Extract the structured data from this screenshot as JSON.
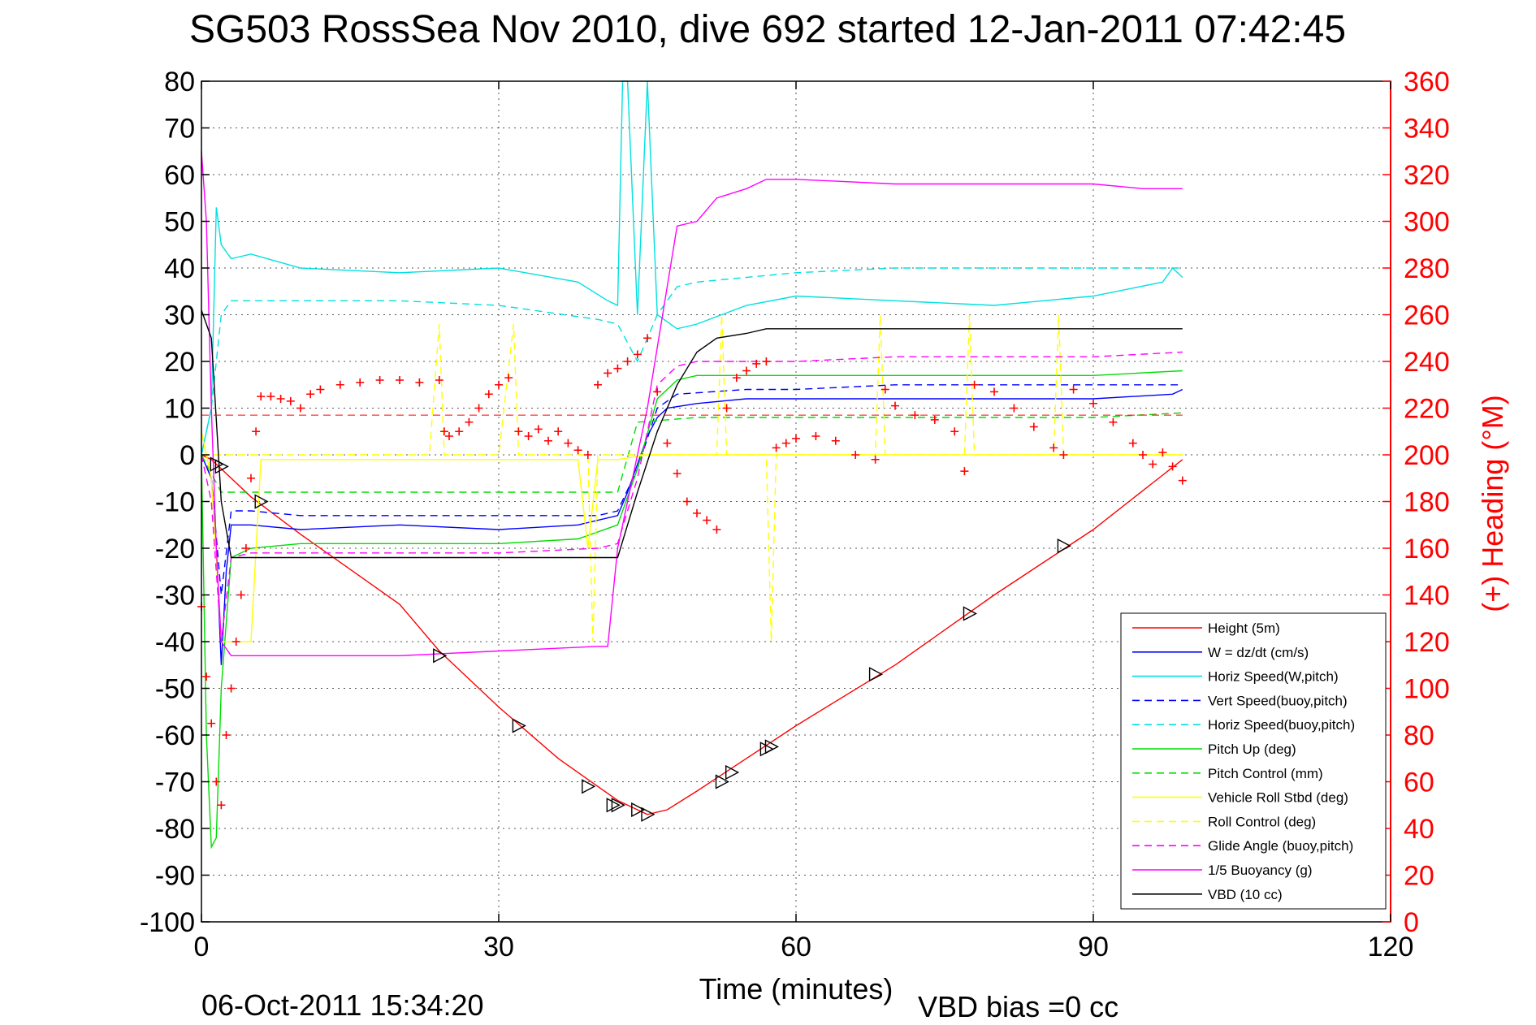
{
  "chart_data": {
    "type": "line",
    "title": "SG503 RossSea Nov 2010, dive 692 started 12-Jan-2011 07:42:45",
    "xlabel": "Time (minutes)",
    "ylabel": "",
    "y2label": "(+) Heading (°M)",
    "xlim": [
      0,
      120
    ],
    "ylim": [
      -100,
      80
    ],
    "y2lim": [
      0,
      360
    ],
    "x_ticks": [
      "0",
      "30",
      "60",
      "90",
      "120"
    ],
    "y_ticks": [
      "80",
      "70",
      "60",
      "50",
      "40",
      "30",
      "20",
      "10",
      "0",
      "-10",
      "-20",
      "-30",
      "-40",
      "-50",
      "-60",
      "-70",
      "-80",
      "-90",
      "-100"
    ],
    "y2_ticks": [
      "360",
      "340",
      "320",
      "300",
      "280",
      "260",
      "240",
      "220",
      "200",
      "180",
      "160",
      "140",
      "120",
      "100",
      "80",
      "60",
      "40",
      "20",
      "0"
    ],
    "grid": true,
    "legend_position": "bottom-right",
    "footer_left": "06-Oct-2011 15:34:20",
    "footer_right": "VBD bias =0 cc",
    "series": [
      {
        "name": "Height (5m)",
        "color": "#ff0000",
        "dash": "solid",
        "x": [
          0,
          1,
          2,
          5,
          10,
          20,
          24,
          30,
          36,
          40,
          42,
          44,
          45,
          47,
          50,
          55,
          60,
          70,
          80,
          90,
          96,
          99
        ],
        "y": [
          0,
          -1,
          -3,
          -9,
          -17,
          -32,
          -42,
          -54,
          -65,
          -71,
          -74,
          -76,
          -77,
          -76,
          -72,
          -65,
          -58,
          -45,
          -30,
          -16,
          -6,
          -1
        ]
      },
      {
        "name": "W = dz/dt (cm/s)",
        "color": "#0000ff",
        "dash": "solid",
        "x": [
          0,
          1,
          1.5,
          2,
          2.5,
          3,
          5,
          10,
          20,
          30,
          38,
          42,
          43,
          44,
          45,
          46,
          47,
          50,
          55,
          60,
          70,
          80,
          90,
          98,
          99
        ],
        "y": [
          0,
          -5,
          -20,
          -45,
          -25,
          -15,
          -15,
          -16,
          -15,
          -16,
          -15,
          -13,
          -8,
          -2,
          4,
          8,
          10,
          11,
          12,
          12,
          12,
          12,
          12,
          13,
          14
        ]
      },
      {
        "name": "Horiz Speed(W,pitch)",
        "color": "#00e0e0",
        "dash": "solid",
        "x": [
          0,
          1,
          1.5,
          2,
          3,
          5,
          10,
          20,
          30,
          38,
          41,
          42,
          42.5,
          43,
          44,
          45,
          46,
          48,
          50,
          55,
          60,
          70,
          80,
          90,
          97,
          98,
          99
        ],
        "y": [
          0,
          10,
          53,
          45,
          42,
          43,
          40,
          39,
          40,
          37,
          33,
          32,
          80,
          80,
          30,
          80,
          30,
          27,
          28,
          32,
          34,
          33,
          32,
          34,
          37,
          40,
          38
        ]
      },
      {
        "name": "Vert Speed(buoy,pitch)",
        "color": "#0000ff",
        "dash": "dashed",
        "x": [
          0,
          1,
          2,
          3,
          5,
          10,
          20,
          30,
          40,
          42,
          44,
          46,
          48,
          55,
          60,
          70,
          80,
          90,
          99
        ],
        "y": [
          0,
          -5,
          -30,
          -12,
          -12,
          -13,
          -13,
          -13,
          -13,
          -12,
          -3,
          10,
          13,
          14,
          14,
          15,
          15,
          15,
          15
        ]
      },
      {
        "name": "Horiz Speed(buoy,pitch)",
        "color": "#00e0e0",
        "dash": "dashed",
        "x": [
          0,
          1,
          2,
          3,
          5,
          10,
          20,
          30,
          40,
          42,
          44,
          46,
          48,
          50,
          55,
          60,
          70,
          80,
          90,
          99
        ],
        "y": [
          0,
          10,
          30,
          33,
          33,
          33,
          33,
          32,
          29,
          28,
          20,
          30,
          36,
          37,
          38,
          39,
          40,
          40,
          40,
          40
        ]
      },
      {
        "name": "Pitch Up (deg)",
        "color": "#00dd00",
        "dash": "solid",
        "x": [
          0,
          0.5,
          1,
          1.5,
          2,
          3,
          5,
          10,
          20,
          30,
          38,
          42,
          44,
          46,
          48,
          50,
          55,
          60,
          70,
          80,
          90,
          99
        ],
        "y": [
          0,
          -60,
          -84,
          -82,
          -50,
          -22,
          -20,
          -19,
          -19,
          -19,
          -18,
          -15,
          -3,
          12,
          16,
          17,
          17,
          17,
          17,
          17,
          17,
          18
        ]
      },
      {
        "name": "Pitch Control (mm)",
        "color": "#00dd00",
        "dash": "dashed",
        "x": [
          0,
          2,
          5,
          10,
          20,
          30,
          42,
          44,
          50,
          60,
          70,
          80,
          90,
          99
        ],
        "y": [
          0,
          -8,
          -8,
          -8,
          -8,
          -8,
          -8,
          7,
          8,
          8,
          8,
          8,
          8,
          9
        ]
      },
      {
        "name": "Vehicle Roll Stbd (deg)",
        "color": "#ffff00",
        "dash": "solid",
        "x": [
          0,
          1,
          2,
          3,
          5,
          6,
          10,
          20,
          30,
          38,
          39,
          40,
          42,
          45,
          50,
          60,
          70,
          80,
          90,
          99
        ],
        "y": [
          5,
          -5,
          -40,
          -40,
          -40,
          -1,
          -1,
          -1,
          -1,
          -1,
          -20,
          -1,
          -1,
          0,
          0,
          0,
          0,
          0,
          0,
          0
        ]
      },
      {
        "name": "Roll Control (deg)",
        "color": "#ffff00",
        "dash": "dashed",
        "x": [
          0,
          5,
          23,
          24,
          24.5,
          30,
          31.5,
          32,
          39,
          39.5,
          40,
          52,
          52.5,
          53,
          57,
          57.5,
          58,
          68,
          68.5,
          69,
          77,
          77.5,
          78,
          86,
          86.5,
          87,
          99
        ],
        "y": [
          0,
          0,
          0,
          28,
          0,
          0,
          28,
          0,
          0,
          -40,
          0,
          0,
          30,
          0,
          0,
          -40,
          0,
          0,
          30,
          0,
          0,
          30,
          0,
          0,
          30,
          0,
          0
        ]
      },
      {
        "name": "Glide Angle (buoy,pitch)",
        "color": "#ff00ff",
        "dash": "dashed",
        "x": [
          0,
          1,
          2,
          3,
          5,
          10,
          20,
          30,
          40,
          42,
          44,
          46,
          48,
          50,
          55,
          60,
          70,
          80,
          90,
          99
        ],
        "y": [
          0,
          -10,
          -40,
          -22,
          -21,
          -21,
          -21,
          -21,
          -20,
          -19,
          -5,
          15,
          19,
          20,
          20,
          20,
          21,
          21,
          21,
          22
        ]
      },
      {
        "name": "1/5 Buoyancy (g)",
        "color": "#ff00ff",
        "dash": "solid",
        "x": [
          0,
          0.5,
          1,
          1.5,
          2,
          3,
          10,
          20,
          30,
          40,
          41,
          42,
          45,
          48,
          50,
          52,
          55,
          57,
          60,
          70,
          80,
          90,
          95,
          99
        ],
        "y": [
          65,
          50,
          10,
          -20,
          -40,
          -43,
          -43,
          -43,
          -42,
          -41,
          -41,
          -20,
          10,
          49,
          50,
          55,
          57,
          59,
          59,
          58,
          58,
          58,
          57,
          57
        ]
      },
      {
        "name": "VBD (10 cc)",
        "color": "#000000",
        "dash": "solid",
        "x": [
          0,
          1,
          2,
          3,
          10,
          20,
          30,
          40,
          42,
          44,
          46,
          48,
          50,
          52,
          55,
          57,
          60,
          70,
          80,
          90,
          99
        ],
        "y": [
          31,
          25,
          -10,
          -22,
          -22,
          -22,
          -22,
          -22,
          -22,
          -8,
          5,
          15,
          22,
          25,
          26,
          27,
          27,
          27,
          27,
          27,
          27
        ]
      }
    ],
    "heading": {
      "name": "(+) Heading",
      "color": "#ff0000",
      "marker": "+",
      "x": [
        0,
        0.5,
        1,
        1.5,
        2,
        2.5,
        3,
        3.5,
        4,
        4.5,
        5,
        5.5,
        6,
        7,
        8,
        9,
        10,
        11,
        12,
        14,
        16,
        18,
        20,
        22,
        24,
        24.5,
        25,
        26,
        27,
        28,
        29,
        30,
        31,
        32,
        33,
        34,
        35,
        36,
        37,
        38,
        39,
        40,
        41,
        42,
        43,
        44,
        45,
        46,
        47,
        48,
        49,
        50,
        51,
        52,
        53,
        54,
        55,
        56,
        57,
        58,
        59,
        60,
        62,
        64,
        66,
        68,
        69,
        70,
        72,
        74,
        76,
        77,
        78,
        80,
        82,
        84,
        86,
        87,
        88,
        90,
        92,
        94,
        95,
        96,
        97,
        98,
        99
      ],
      "y": [
        135,
        105,
        85,
        60,
        50,
        80,
        100,
        120,
        140,
        160,
        190,
        210,
        225,
        225,
        224,
        223,
        220,
        226,
        228,
        230,
        231,
        232,
        232,
        231,
        232,
        210,
        208,
        210,
        214,
        220,
        226,
        230,
        233,
        210,
        208,
        211,
        206,
        210,
        205,
        202,
        200,
        230,
        235,
        237,
        240,
        243,
        250,
        227,
        205,
        192,
        180,
        175,
        172,
        168,
        220,
        233,
        236,
        239,
        240,
        203,
        205,
        207,
        208,
        206,
        200,
        198,
        228,
        221,
        217,
        215,
        210,
        193,
        230,
        227,
        220,
        212,
        203,
        200,
        228,
        222,
        214,
        205,
        200,
        196,
        201,
        195,
        189
      ]
    },
    "markers": {
      "color": "#000000",
      "points": [
        [
          1.5,
          -2
        ],
        [
          2,
          -2.5
        ],
        [
          6,
          -10
        ],
        [
          24,
          -43
        ],
        [
          32,
          -58
        ],
        [
          39,
          -71
        ],
        [
          41.5,
          -75
        ],
        [
          42,
          -75
        ],
        [
          44,
          -76
        ],
        [
          45,
          -77
        ],
        [
          52.5,
          -70
        ],
        [
          53.5,
          -68
        ],
        [
          57,
          -63
        ],
        [
          57.5,
          -62.5
        ],
        [
          68,
          -47
        ],
        [
          77.5,
          -34
        ],
        [
          87,
          -19.5
        ]
      ]
    }
  }
}
